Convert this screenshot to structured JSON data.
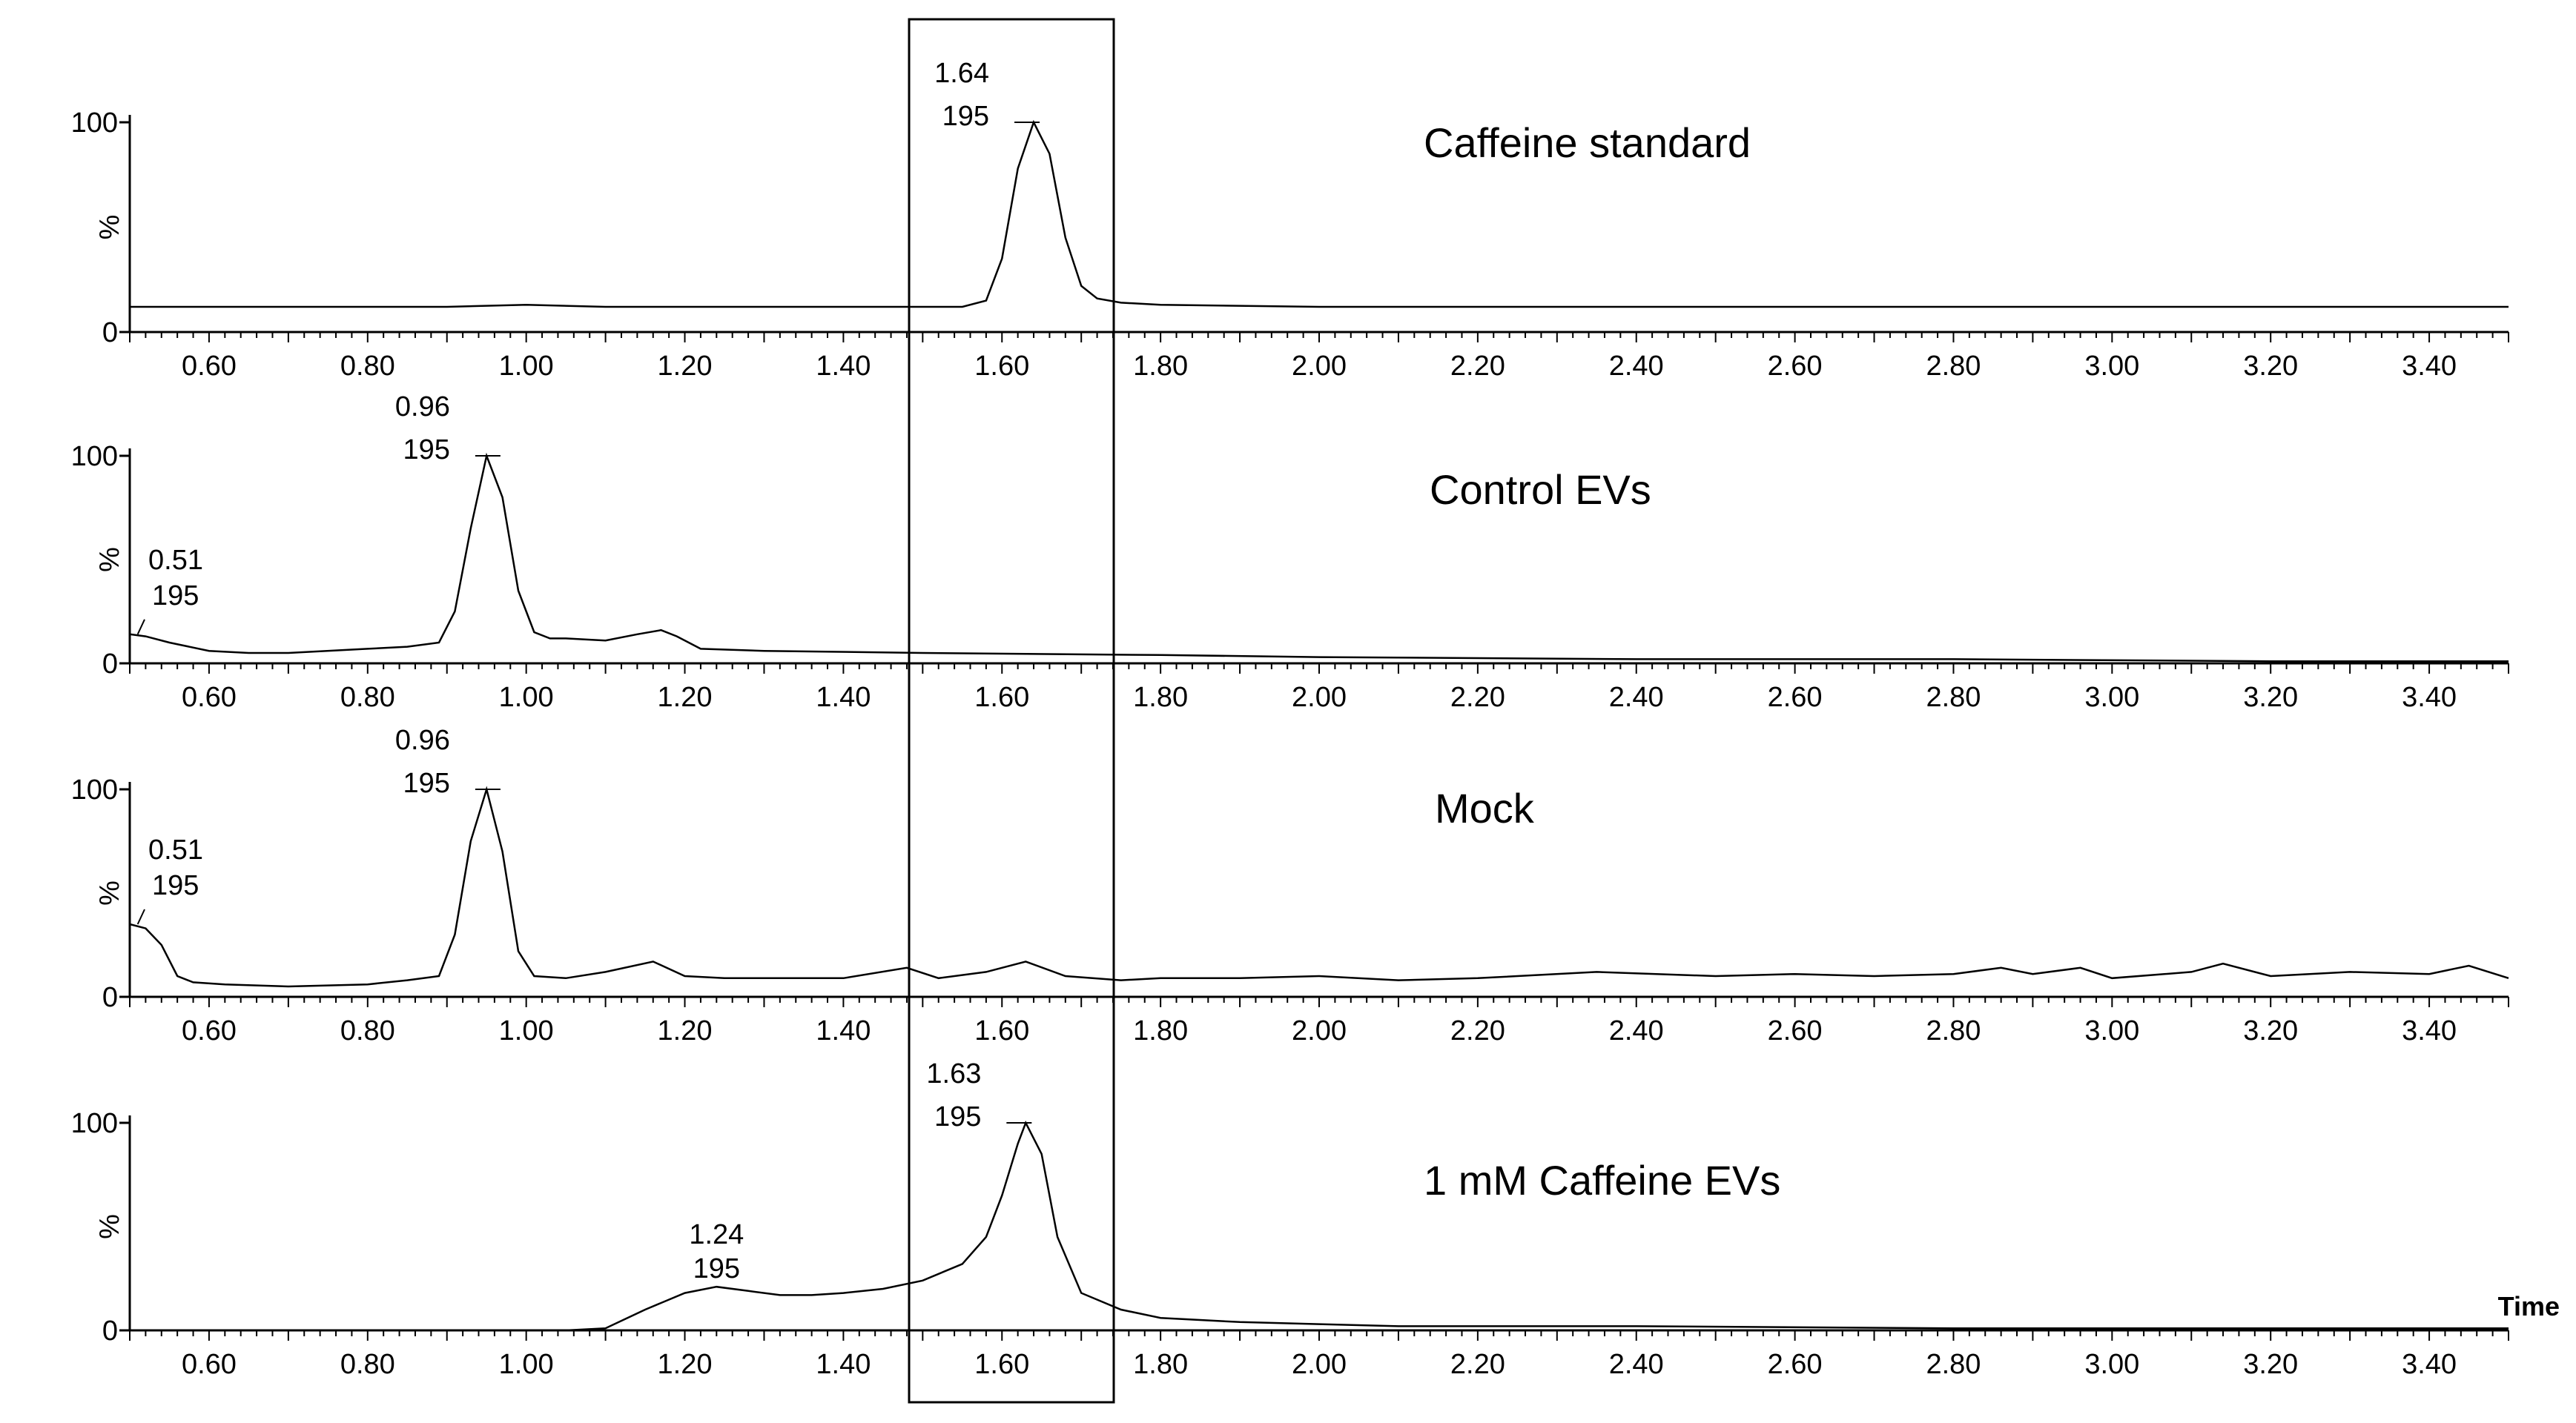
{
  "chart_data": [
    {
      "type": "line",
      "title": "Caffeine standard",
      "ylabel": "%",
      "xlabel": "",
      "xlim": [
        0.5,
        3.5
      ],
      "ylim": [
        0,
        100
      ],
      "y_ticks": [
        "0",
        "100"
      ],
      "x_ticks": [
        "0.60",
        "0.80",
        "1.00",
        "1.20",
        "1.40",
        "1.60",
        "1.80",
        "2.00",
        "2.20",
        "2.40",
        "2.60",
        "2.80",
        "3.00",
        "3.20",
        "3.40"
      ],
      "grid": false,
      "series": [
        {
          "x": [
            0.5,
            0.6,
            0.7,
            0.8,
            0.9,
            1.0,
            1.1,
            1.2,
            1.3,
            1.4,
            1.5,
            1.55,
            1.58,
            1.6,
            1.62,
            1.64,
            1.66,
            1.68,
            1.7,
            1.72,
            1.75,
            1.8,
            2.0,
            2.2,
            2.4,
            2.6,
            2.8,
            3.0,
            3.2,
            3.4,
            3.5
          ],
          "y": [
            12,
            12,
            12,
            12,
            12,
            13,
            12,
            12,
            12,
            12,
            12,
            12,
            15,
            35,
            78,
            100,
            85,
            45,
            22,
            16,
            14,
            13,
            12,
            12,
            12,
            12,
            12,
            12,
            12,
            12,
            12
          ]
        }
      ],
      "annotations": [
        {
          "x": 1.64,
          "y": 100,
          "label_rt": "1.64",
          "label_mz": "195"
        }
      ]
    },
    {
      "type": "line",
      "title": "Control EVs",
      "ylabel": "%",
      "xlabel": "",
      "xlim": [
        0.5,
        3.5
      ],
      "ylim": [
        0,
        100
      ],
      "y_ticks": [
        "0",
        "100"
      ],
      "x_ticks": [
        "0.60",
        "0.80",
        "1.00",
        "1.20",
        "1.40",
        "1.60",
        "1.80",
        "2.00",
        "2.20",
        "2.40",
        "2.60",
        "2.80",
        "3.00",
        "3.20",
        "3.40"
      ],
      "grid": false,
      "series": [
        {
          "x": [
            0.5,
            0.52,
            0.55,
            0.6,
            0.65,
            0.7,
            0.8,
            0.85,
            0.89,
            0.91,
            0.93,
            0.95,
            0.97,
            0.99,
            1.01,
            1.03,
            1.05,
            1.1,
            1.14,
            1.17,
            1.19,
            1.22,
            1.3,
            1.5,
            1.8,
            2.0,
            2.4,
            2.8,
            3.2,
            3.5
          ],
          "y": [
            14,
            13,
            10,
            6,
            5,
            5,
            7,
            8,
            10,
            25,
            65,
            100,
            80,
            35,
            15,
            12,
            12,
            11,
            14,
            16,
            13,
            7,
            6,
            5,
            4,
            3,
            2,
            2,
            1,
            1
          ]
        }
      ],
      "annotations": [
        {
          "x": 0.96,
          "y": 100,
          "label_rt": "0.96",
          "label_mz": "195"
        },
        {
          "x": 0.51,
          "y": 14,
          "label_rt": "0.51",
          "label_mz": "195"
        }
      ]
    },
    {
      "type": "line",
      "title": "Mock",
      "ylabel": "%",
      "xlabel": "",
      "xlim": [
        0.5,
        3.5
      ],
      "ylim": [
        0,
        100
      ],
      "y_ticks": [
        "0",
        "100"
      ],
      "x_ticks": [
        "0.60",
        "0.80",
        "1.00",
        "1.20",
        "1.40",
        "1.60",
        "1.80",
        "2.00",
        "2.20",
        "2.40",
        "2.60",
        "2.80",
        "3.00",
        "3.20",
        "3.40"
      ],
      "grid": false,
      "series": [
        {
          "x": [
            0.5,
            0.52,
            0.54,
            0.56,
            0.58,
            0.62,
            0.7,
            0.8,
            0.85,
            0.89,
            0.91,
            0.93,
            0.95,
            0.97,
            0.99,
            1.01,
            1.05,
            1.1,
            1.16,
            1.2,
            1.25,
            1.3,
            1.4,
            1.48,
            1.52,
            1.58,
            1.63,
            1.68,
            1.75,
            1.8,
            1.9,
            2.0,
            2.1,
            2.2,
            2.35,
            2.5,
            2.6,
            2.7,
            2.8,
            2.86,
            2.9,
            2.96,
            3.0,
            3.1,
            3.14,
            3.2,
            3.3,
            3.4,
            3.45,
            3.5
          ],
          "y": [
            35,
            33,
            25,
            10,
            7,
            6,
            5,
            6,
            8,
            10,
            30,
            75,
            100,
            70,
            22,
            10,
            9,
            12,
            17,
            10,
            9,
            9,
            9,
            14,
            9,
            12,
            17,
            10,
            8,
            9,
            9,
            10,
            8,
            9,
            12,
            10,
            11,
            10,
            11,
            14,
            11,
            14,
            9,
            12,
            16,
            10,
            12,
            11,
            15,
            9
          ]
        }
      ],
      "annotations": [
        {
          "x": 0.96,
          "y": 100,
          "label_rt": "0.96",
          "label_mz": "195"
        },
        {
          "x": 0.51,
          "y": 35,
          "label_rt": "0.51",
          "label_mz": "195"
        }
      ]
    },
    {
      "type": "line",
      "title": "1 mM Caffeine EVs",
      "ylabel": "%",
      "xlabel": "Time",
      "xlim": [
        0.5,
        3.5
      ],
      "ylim": [
        0,
        100
      ],
      "y_ticks": [
        "0",
        "100"
      ],
      "x_ticks": [
        "0.60",
        "0.80",
        "1.00",
        "1.20",
        "1.40",
        "1.60",
        "1.80",
        "2.00",
        "2.20",
        "2.40",
        "2.60",
        "2.80",
        "3.00",
        "3.20",
        "3.40"
      ],
      "grid": false,
      "series": [
        {
          "x": [
            0.5,
            0.8,
            1.0,
            1.05,
            1.1,
            1.15,
            1.2,
            1.24,
            1.28,
            1.32,
            1.36,
            1.4,
            1.45,
            1.5,
            1.55,
            1.58,
            1.6,
            1.62,
            1.63,
            1.65,
            1.67,
            1.7,
            1.75,
            1.8,
            1.9,
            2.0,
            2.1,
            2.4,
            2.8,
            3.2,
            3.5
          ],
          "y": [
            0,
            0,
            0,
            0,
            1,
            10,
            18,
            21,
            19,
            17,
            17,
            18,
            20,
            24,
            32,
            45,
            65,
            90,
            100,
            85,
            45,
            18,
            10,
            6,
            4,
            3,
            2,
            2,
            1,
            1,
            1
          ]
        }
      ],
      "annotations": [
        {
          "x": 1.63,
          "y": 100,
          "label_rt": "1.63",
          "label_mz": "195"
        },
        {
          "x": 1.24,
          "y": 21,
          "label_rt": "1.24",
          "label_mz": "195"
        }
      ]
    }
  ]
}
